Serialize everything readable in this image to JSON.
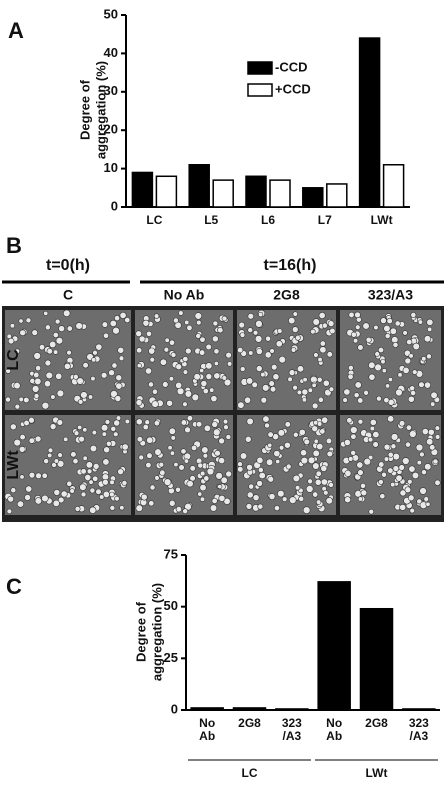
{
  "panel_labels": [
    "A",
    "B",
    "C"
  ],
  "micrographs": {
    "time_headers": [
      "t=0(h)",
      "t=16(h)"
    ],
    "columns": [
      "C",
      "No Ab",
      "2G8",
      "323/A3"
    ],
    "rows": [
      "LC",
      "LWt"
    ]
  },
  "chart_data": [
    {
      "type": "bar",
      "ylabel_lines": [
        "Degree of",
        "aggregation (%)"
      ],
      "categories": [
        "LC",
        "L5",
        "L6",
        "L7",
        "LWt"
      ],
      "series": [
        {
          "name": "-CCD",
          "color": "#000000",
          "values": [
            9,
            11,
            8,
            5,
            44
          ]
        },
        {
          "name": "+CCD",
          "color": "#ffffff",
          "values": [
            8,
            7,
            7,
            6,
            11
          ]
        }
      ],
      "ylim": [
        0,
        50
      ],
      "yticks": [
        0,
        10,
        20,
        30,
        40,
        50
      ]
    },
    {
      "type": "bar",
      "ylabel_lines": [
        "Degree of",
        "aggregation (%)"
      ],
      "categories": [
        "No Ab",
        "2G8",
        "323/A3",
        "No Ab",
        "2G8",
        "323/A3"
      ],
      "values": [
        1,
        1,
        0.5,
        62,
        49,
        0.5
      ],
      "color": "#000000",
      "groups": [
        "LC",
        "LWt"
      ],
      "ylim": [
        0,
        75
      ],
      "yticks": [
        0,
        25,
        50,
        75
      ]
    }
  ]
}
